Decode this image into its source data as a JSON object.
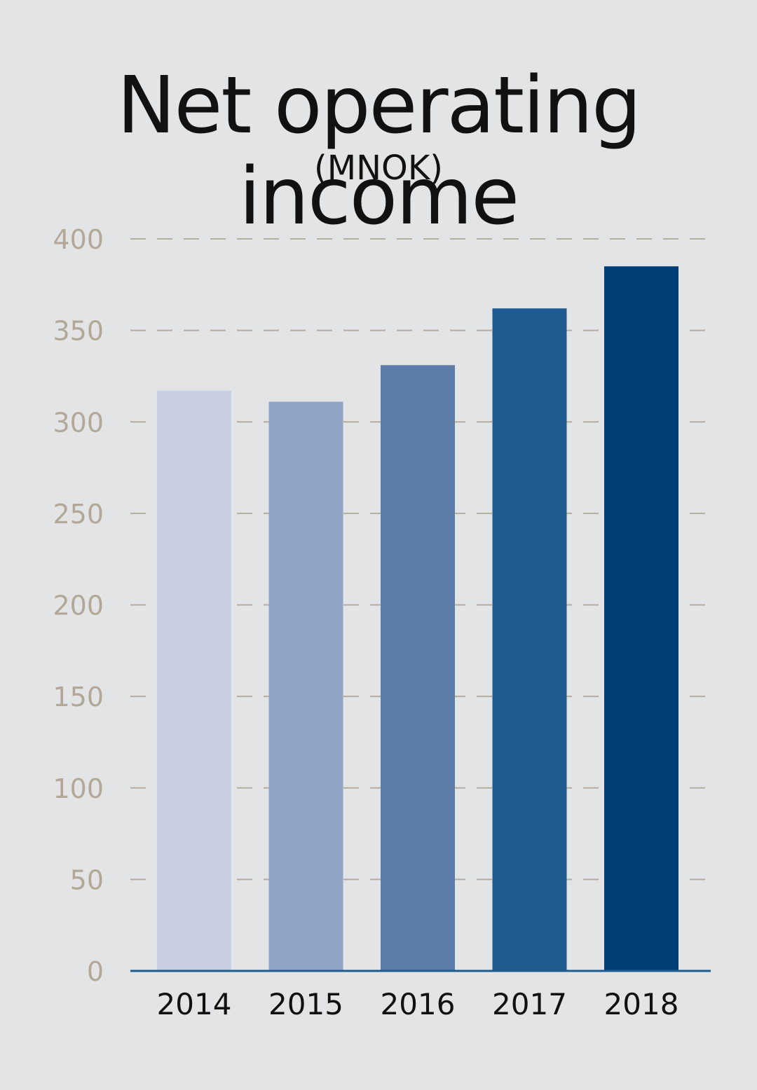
{
  "chart_data": {
    "type": "bar",
    "title": "Net operating income",
    "subtitle": "(MNOK)",
    "xlabel": "",
    "ylabel": "",
    "categories": [
      "2014",
      "2015",
      "2016",
      "2017",
      "2018"
    ],
    "values": [
      317,
      311,
      331,
      362,
      385
    ],
    "ylim": [
      0,
      400
    ],
    "yticks": [
      "0",
      "50",
      "100",
      "150",
      "200",
      "250",
      "300",
      "350",
      "400"
    ],
    "grid": true,
    "legend": "none",
    "colors": [
      "#c8cfe2",
      "#90a4c6",
      "#5b7ca8",
      "#1f5b8f",
      "#003e77"
    ],
    "axis_color": "#1f5b8f",
    "tick_label_color": "#b3a898",
    "grid_color": "#b5aca0"
  }
}
